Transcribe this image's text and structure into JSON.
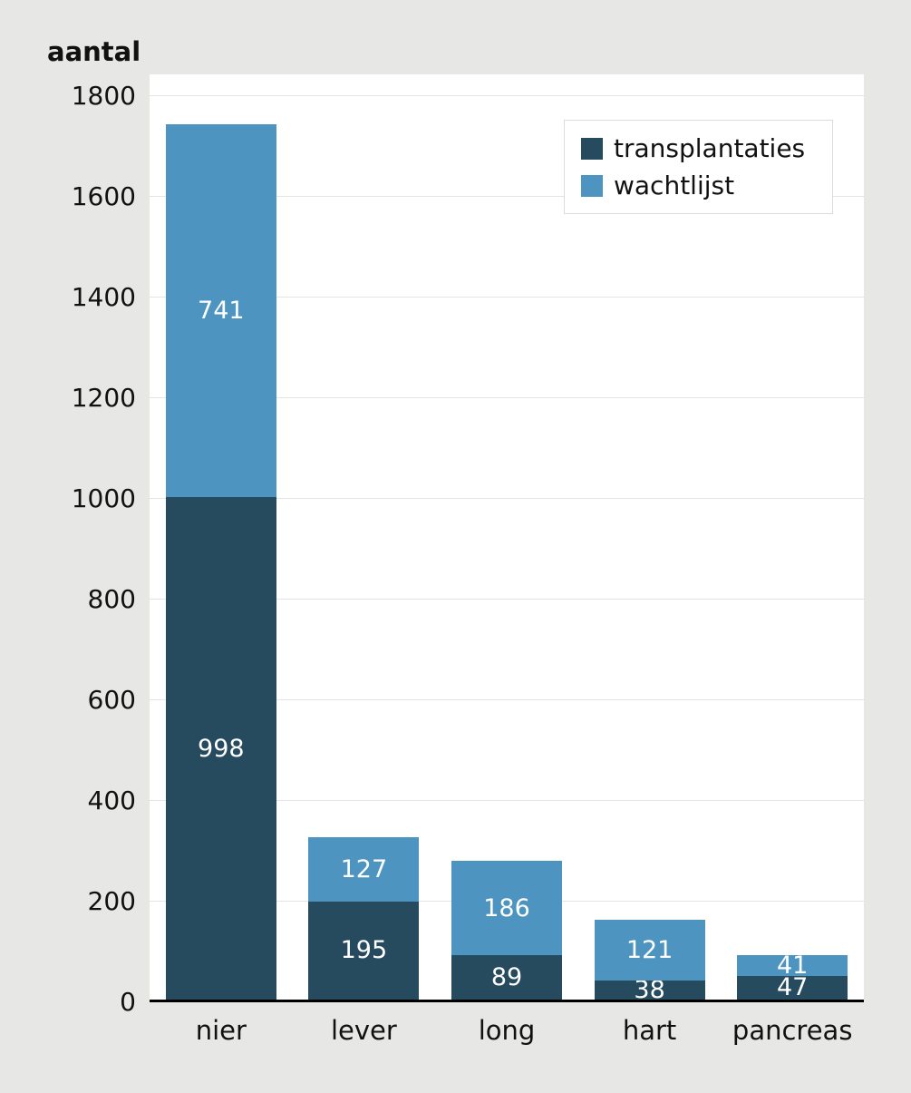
{
  "chart_data": {
    "type": "bar",
    "stacked": true,
    "title": "",
    "ylabel": "aantal",
    "xlabel": "",
    "ylim": [
      0,
      1800
    ],
    "ytick_step": 200,
    "yticks": [
      0,
      200,
      400,
      600,
      800,
      1000,
      1200,
      1400,
      1600,
      1800
    ],
    "grid": true,
    "legend_position": "top-right",
    "categories": [
      "nier",
      "lever",
      "long",
      "hart",
      "pancreas"
    ],
    "series": [
      {
        "name": "transplantaties",
        "color": "#264a5e",
        "values": [
          998,
          195,
          89,
          38,
          47
        ]
      },
      {
        "name": "wachtlijst",
        "color": "#4e94c0",
        "values": [
          741,
          127,
          186,
          121,
          41
        ]
      }
    ],
    "value_label_color": "#ffffff",
    "plot_background": "#ffffff",
    "page_background": "#e7e7e6"
  }
}
